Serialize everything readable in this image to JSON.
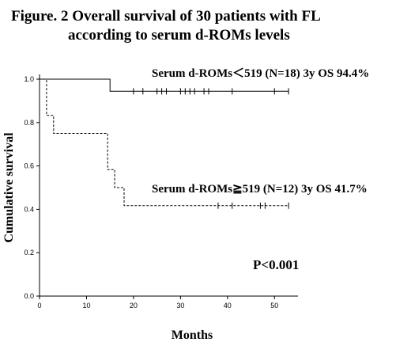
{
  "chart_data": {
    "type": "line",
    "title_line1": "Figure. 2 Overall survival of 30 patients with FL",
    "title_line2": "according to serum d-ROMs levels",
    "xlabel": "Months",
    "ylabel": "Cumulative survival",
    "xlim": [
      0,
      55
    ],
    "ylim": [
      0,
      1.0
    ],
    "x_ticks": [
      0,
      10,
      20,
      30,
      40,
      50
    ],
    "y_ticks": [
      0.0,
      0.2,
      0.4,
      0.6,
      0.8,
      1.0
    ],
    "x_tick_labels": [
      "0",
      "10",
      "20",
      "30",
      "40",
      "50"
    ],
    "y_tick_labels": [
      "0.0",
      "0.2",
      "0.4",
      "0.6",
      "0.8",
      "1.0"
    ],
    "grid": false,
    "annotations": {
      "high_label": "Serum d-ROMs≧519 (N=12)  3y OS 41.7%",
      "low_label": "Serum d-ROMs＜519 (N=18)  3y OS 94.4%",
      "p_value": "P<0.001"
    },
    "series": [
      {
        "style": "solid",
        "steps": [
          [
            0,
            1.0
          ],
          [
            15,
            1.0
          ],
          [
            15,
            0.944
          ],
          [
            53,
            0.944
          ]
        ],
        "censored_x": [
          20,
          22,
          25,
          26,
          27,
          30,
          31,
          32,
          33,
          35,
          36,
          41,
          50,
          53
        ]
      },
      {
        "style": "dashed",
        "steps": [
          [
            0,
            1.0
          ],
          [
            1.5,
            1.0
          ],
          [
            1.5,
            0.833
          ],
          [
            3,
            0.833
          ],
          [
            3,
            0.75
          ],
          [
            14.5,
            0.75
          ],
          [
            14.5,
            0.583
          ],
          [
            16,
            0.583
          ],
          [
            16,
            0.5
          ],
          [
            18,
            0.5
          ],
          [
            18,
            0.417
          ],
          [
            53,
            0.417
          ]
        ],
        "censored_x": [
          38,
          41,
          47,
          48,
          53
        ]
      }
    ]
  }
}
